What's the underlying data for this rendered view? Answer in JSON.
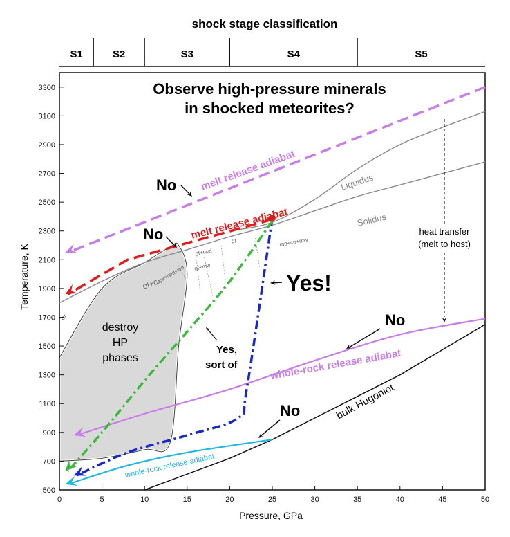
{
  "figure": {
    "shock_stage_title": "shock stage classification",
    "stages": [
      "S1",
      "S2",
      "S3",
      "S4",
      "S5"
    ],
    "question_line1": "Observe high-pressure minerals",
    "question_line2": "in shocked meteorites?"
  },
  "chart_data": {
    "type": "line",
    "xlabel": "Pressure, GPa",
    "ylabel": "Temperature, K",
    "xlim": [
      0,
      50
    ],
    "ylim": [
      500,
      3400
    ],
    "xticks": [
      0,
      5,
      10,
      15,
      20,
      25,
      30,
      35,
      40,
      45,
      50
    ],
    "yticks": [
      500,
      700,
      900,
      1100,
      1300,
      1500,
      1700,
      1900,
      2100,
      2300,
      2500,
      2700,
      2900,
      3100,
      3300
    ],
    "stage_boundaries": [
      0,
      4,
      10,
      20,
      35,
      50
    ],
    "liquidus": {
      "name": "Liquidus",
      "x": [
        20,
        25,
        30,
        35,
        40,
        45,
        50
      ],
      "y": [
        2300,
        2360,
        2520,
        2730,
        2900,
        3020,
        3130
      ]
    },
    "solidus": {
      "name": "Solidus",
      "x": [
        0,
        5,
        10,
        15,
        20,
        25,
        30,
        35,
        40,
        45,
        50
      ],
      "y": [
        1800,
        1950,
        2080,
        2170,
        2260,
        2340,
        2440,
        2540,
        2620,
        2700,
        2780
      ]
    },
    "bulk_hugoniot": {
      "name": "bulk Hugoniot",
      "x": [
        10,
        20,
        25,
        30,
        40,
        50
      ],
      "y": [
        500,
        720,
        850,
        1000,
        1300,
        1650
      ]
    },
    "destroy_hp_boundary": {
      "x": [
        0,
        5,
        10,
        13,
        14,
        15,
        14,
        13,
        10,
        5,
        0
      ],
      "y": [
        1420,
        1900,
        2080,
        2190,
        2200,
        2000,
        1500,
        830,
        780,
        720,
        700
      ]
    },
    "mineral_labels": [
      "ol",
      "ol+cx",
      "cx+rwd+wd",
      "gt+rwd",
      "gt+mw",
      "gt",
      "mp+cp+mw"
    ],
    "region_label_lines": [
      "destroy",
      "HP",
      "phases"
    ],
    "curves": [
      {
        "name": "melt release adiabat",
        "style": "dashed",
        "color": "#c87ee8",
        "x": [
          50,
          1
        ],
        "y": [
          3300,
          2150
        ]
      },
      {
        "name": "melt release adiabat",
        "style": "dashed",
        "color": "#e01b1b",
        "x": [
          25,
          14,
          8,
          1
        ],
        "y": [
          2380,
          2200,
          2100,
          1860
        ]
      },
      {
        "name": "whole-rock release adiabat",
        "style": "solid",
        "color": "#c87ee8",
        "x": [
          50,
          40,
          30,
          20,
          10,
          2
        ],
        "y": [
          1690,
          1580,
          1400,
          1200,
          1030,
          880
        ]
      },
      {
        "name": "whole-rock release adiabat",
        "style": "solid",
        "color": "#22b6e2",
        "x": [
          25,
          15,
          8,
          1
        ],
        "y": [
          850,
          760,
          670,
          540
        ]
      },
      {
        "name": "",
        "style": "dash-dot",
        "color": "#1a27c8",
        "x": [
          25,
          22,
          21,
          15,
          8,
          2
        ],
        "y": [
          2390,
          1200,
          1000,
          880,
          760,
          600
        ]
      },
      {
        "name": "",
        "style": "dash-dot",
        "color": "#3dba3d",
        "x": [
          25,
          20,
          15,
          10,
          5,
          1
        ],
        "y": [
          2370,
          1950,
          1600,
          1260,
          900,
          630
        ]
      }
    ],
    "annotations": [
      "No",
      "No",
      "No",
      "No",
      "Yes!",
      "Yes,",
      "sort of",
      "heat transfer",
      "(melt to host)"
    ]
  }
}
